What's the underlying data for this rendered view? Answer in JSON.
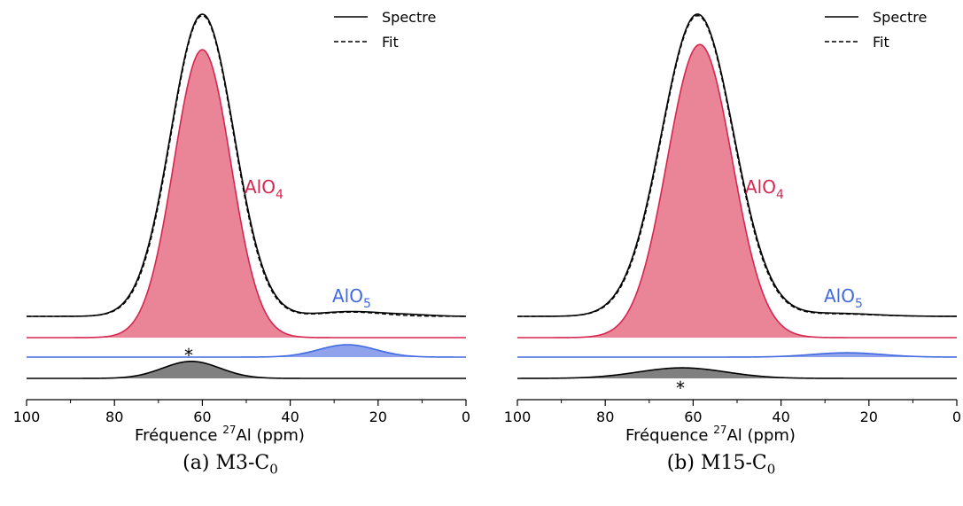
{
  "chart_data": [
    {
      "type": "line",
      "caption": {
        "letter": "(a)",
        "name": "M3-C",
        "sub": "0"
      },
      "xlabel": {
        "pre": "Fréquence ",
        "sup": "27",
        "post": "Al (ppm)"
      },
      "xlim": [
        100,
        0
      ],
      "xticks": [
        100,
        80,
        60,
        40,
        20,
        0
      ],
      "legend": {
        "position": "top-right",
        "entries": [
          "Spectre",
          "Fit"
        ]
      },
      "annotations": {
        "alo4": {
          "base": "AlO",
          "sub": "4"
        },
        "alo5": {
          "base": "AlO",
          "sub": "5"
        },
        "star": "*"
      },
      "colors": {
        "alo4": "#d6264f",
        "alo4_fill": "#ea8598",
        "alo5": "#4169e1",
        "alo5_fill": "#8fa3ec",
        "star_fill": "#808080"
      },
      "series": [
        {
          "name": "Spectre",
          "components": [
            {
              "center": 60,
              "width": 7.2,
              "amp": 1.0
            },
            {
              "center": 26,
              "width": 7.5,
              "amp": 0.016
            },
            {
              "center": 12,
              "width": 5,
              "amp": 0.004
            }
          ]
        },
        {
          "name": "Fit",
          "components": [
            {
              "center": 60,
              "width": 7.1,
              "amp": 0.995
            },
            {
              "center": 26,
              "width": 7,
              "amp": 0.014
            }
          ]
        },
        {
          "name": "AlO4",
          "center": 60,
          "width": 6.5,
          "amp": 0.95
        },
        {
          "name": "AlO5",
          "center": 27,
          "width": 6.5,
          "amp": 0.02
        },
        {
          "name": "*",
          "center": 62.5,
          "width": 6.5,
          "amp": 0.06
        }
      ]
    },
    {
      "type": "line",
      "caption": {
        "letter": "(b)",
        "name": "M15-C",
        "sub": "0"
      },
      "xlabel": {
        "pre": "Fréquence ",
        "sup": "27",
        "post": "Al (ppm)"
      },
      "xlim": [
        100,
        0
      ],
      "xticks": [
        100,
        80,
        60,
        40,
        20,
        0
      ],
      "legend": {
        "position": "top-right",
        "entries": [
          "Spectre",
          "Fit"
        ]
      },
      "annotations": {
        "alo4": {
          "base": "AlO",
          "sub": "4"
        },
        "alo5": {
          "base": "AlO",
          "sub": "5"
        },
        "star": "*"
      },
      "colors": {
        "alo4": "#d6264f",
        "alo4_fill": "#ea8598",
        "alo5": "#4169e1",
        "alo5_fill": "#8fa3ec",
        "star_fill": "#808080"
      },
      "series": [
        {
          "name": "Spectre",
          "components": [
            {
              "center": 59,
              "width": 8.2,
              "amp": 1.0
            },
            {
              "center": 28,
              "width": 9,
              "amp": 0.01
            }
          ]
        },
        {
          "name": "Fit",
          "components": [
            {
              "center": 59,
              "width": 8.1,
              "amp": 0.995
            },
            {
              "center": 28,
              "width": 9,
              "amp": 0.008
            }
          ]
        },
        {
          "name": "AlO4",
          "center": 58.5,
          "width": 7.4,
          "amp": 0.945
        },
        {
          "name": "AlO5",
          "center": 25,
          "width": 8,
          "amp": 0.007
        },
        {
          "name": "*",
          "center": 62.5,
          "width": 10,
          "amp": 0.035
        }
      ]
    }
  ]
}
